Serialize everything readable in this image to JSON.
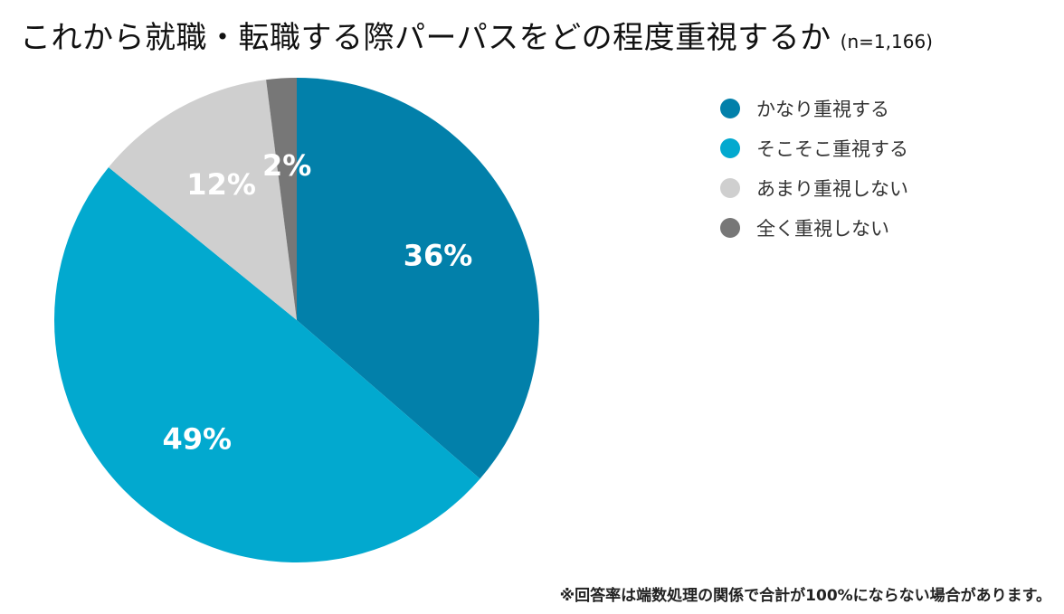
{
  "title": {
    "main": "これから就職・転職する際パーパスをどの程度重視するか",
    "n": "(n=1,166)"
  },
  "chart_data": {
    "type": "pie",
    "categories": [
      "かなり重視する",
      "そこそこ重視する",
      "あまり重視しない",
      "全く重視しない"
    ],
    "values": [
      36,
      49,
      12,
      2
    ],
    "labels": [
      "36%",
      "49%",
      "12%",
      "2%"
    ],
    "colors": [
      "#0280aa",
      "#02a9cf",
      "#cfcfcf",
      "#777777"
    ],
    "label_colors": [
      "#ffffff",
      "#ffffff",
      "#ffffff",
      "#ffffff"
    ],
    "legend_position": "right"
  },
  "footnote": "※回答率は端数処理の関係で合計が100%にならない場合があります。"
}
